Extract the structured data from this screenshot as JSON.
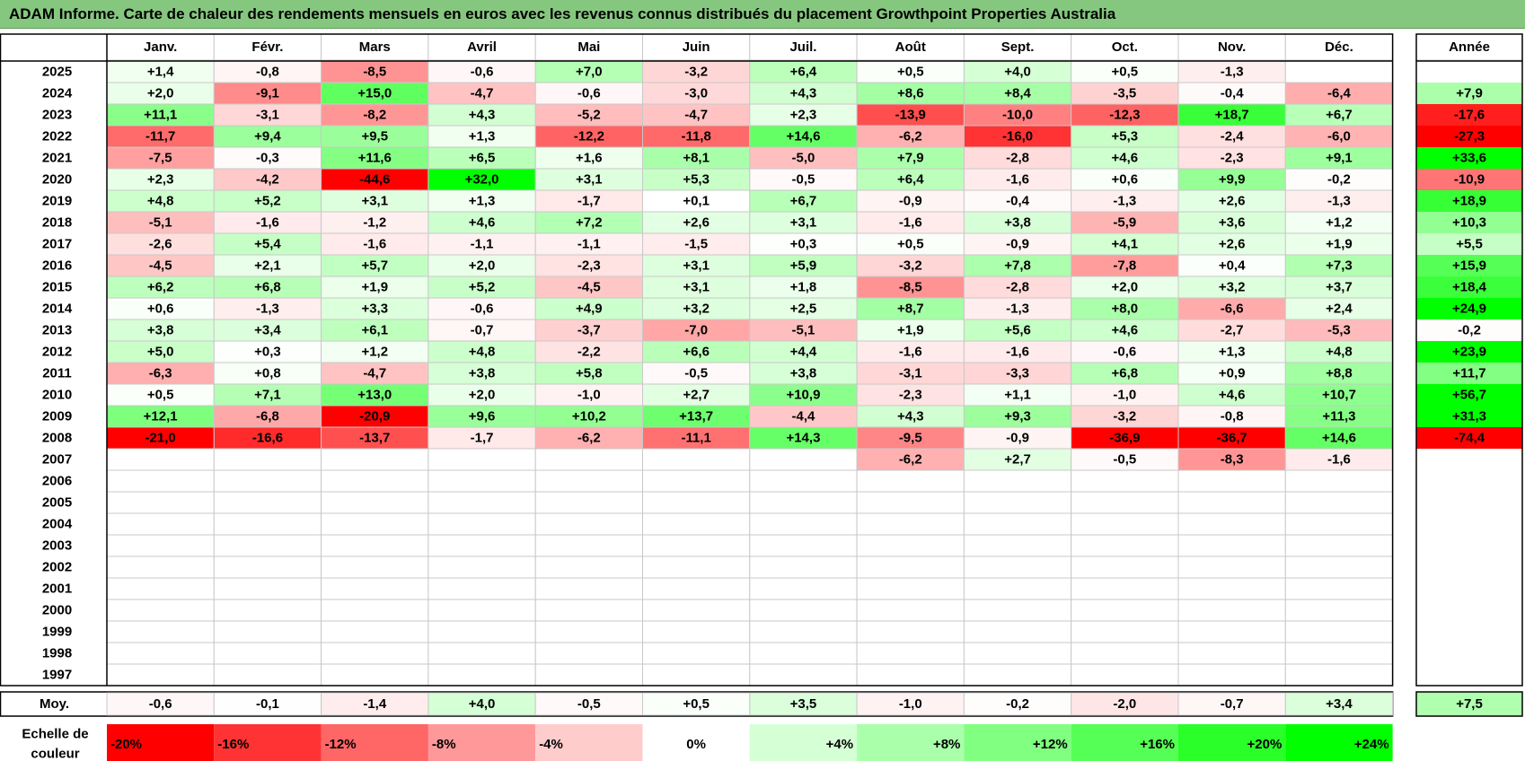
{
  "title": "ADAM Informe. Carte de chaleur des rendements mensuels en euros avec les revenus connus distribués du placement Growthpoint Properties Australia",
  "chart_data": {
    "type": "heatmap",
    "title": "ADAM Informe. Carte de chaleur des rendements mensuels en euros avec les revenus connus distribués du placement Growthpoint Properties Australia",
    "months": [
      "Janv.",
      "Févr.",
      "Mars",
      "Avril",
      "Mai",
      "Juin",
      "Juil.",
      "Août",
      "Sept.",
      "Oct.",
      "Nov.",
      "Déc."
    ],
    "year_header": "Année",
    "rows": [
      {
        "year": "2025",
        "values": [
          "+1,4",
          "-0,8",
          "-8,5",
          "-0,6",
          "+7,0",
          "-3,2",
          "+6,4",
          "+0,5",
          "+4,0",
          "+0,5",
          "-1,3",
          ""
        ],
        "annual": ""
      },
      {
        "year": "2024",
        "values": [
          "+2,0",
          "-9,1",
          "+15,0",
          "-4,7",
          "-0,6",
          "-3,0",
          "+4,3",
          "+8,6",
          "+8,4",
          "-3,5",
          "-0,4",
          "-6,4"
        ],
        "annual": "+7,9"
      },
      {
        "year": "2023",
        "values": [
          "+11,1",
          "-3,1",
          "-8,2",
          "+4,3",
          "-5,2",
          "-4,7",
          "+2,3",
          "-13,9",
          "-10,0",
          "-12,3",
          "+18,7",
          "+6,7"
        ],
        "annual": "-17,6"
      },
      {
        "year": "2022",
        "values": [
          "-11,7",
          "+9,4",
          "+9,5",
          "+1,3",
          "-12,2",
          "-11,8",
          "+14,6",
          "-6,2",
          "-16,0",
          "+5,3",
          "-2,4",
          "-6,0"
        ],
        "annual": "-27,3"
      },
      {
        "year": "2021",
        "values": [
          "-7,5",
          "-0,3",
          "+11,6",
          "+6,5",
          "+1,6",
          "+8,1",
          "-5,0",
          "+7,9",
          "-2,8",
          "+4,6",
          "-2,3",
          "+9,1"
        ],
        "annual": "+33,6"
      },
      {
        "year": "2020",
        "values": [
          "+2,3",
          "-4,2",
          "-44,6",
          "+32,0",
          "+3,1",
          "+5,3",
          "-0,5",
          "+6,4",
          "-1,6",
          "+0,6",
          "+9,9",
          "-0,2"
        ],
        "annual": "-10,9"
      },
      {
        "year": "2019",
        "values": [
          "+4,8",
          "+5,2",
          "+3,1",
          "+1,3",
          "-1,7",
          "+0,1",
          "+6,7",
          "-0,9",
          "-0,4",
          "-1,3",
          "+2,6",
          "-1,3"
        ],
        "annual": "+18,9"
      },
      {
        "year": "2018",
        "values": [
          "-5,1",
          "-1,6",
          "-1,2",
          "+4,6",
          "+7,2",
          "+2,6",
          "+3,1",
          "-1,6",
          "+3,8",
          "-5,9",
          "+3,6",
          "+1,2"
        ],
        "annual": "+10,3"
      },
      {
        "year": "2017",
        "values": [
          "-2,6",
          "+5,4",
          "-1,6",
          "-1,1",
          "-1,1",
          "-1,5",
          "+0,3",
          "+0,5",
          "-0,9",
          "+4,1",
          "+2,6",
          "+1,9"
        ],
        "annual": "+5,5"
      },
      {
        "year": "2016",
        "values": [
          "-4,5",
          "+2,1",
          "+5,7",
          "+2,0",
          "-2,3",
          "+3,1",
          "+5,9",
          "-3,2",
          "+7,8",
          "-7,8",
          "+0,4",
          "+7,3"
        ],
        "annual": "+15,9"
      },
      {
        "year": "2015",
        "values": [
          "+6,2",
          "+6,8",
          "+1,9",
          "+5,2",
          "-4,5",
          "+3,1",
          "+1,8",
          "-8,5",
          "-2,8",
          "+2,0",
          "+3,2",
          "+3,7"
        ],
        "annual": "+18,4"
      },
      {
        "year": "2014",
        "values": [
          "+0,6",
          "-1,3",
          "+3,3",
          "-0,6",
          "+4,9",
          "+3,2",
          "+2,5",
          "+8,7",
          "-1,3",
          "+8,0",
          "-6,6",
          "+2,4"
        ],
        "annual": "+24,9"
      },
      {
        "year": "2013",
        "values": [
          "+3,8",
          "+3,4",
          "+6,1",
          "-0,7",
          "-3,7",
          "-7,0",
          "-5,1",
          "+1,9",
          "+5,6",
          "+4,6",
          "-2,7",
          "-5,3"
        ],
        "annual": "-0,2"
      },
      {
        "year": "2012",
        "values": [
          "+5,0",
          "+0,3",
          "+1,2",
          "+4,8",
          "-2,2",
          "+6,6",
          "+4,4",
          "-1,6",
          "-1,6",
          "-0,6",
          "+1,3",
          "+4,8"
        ],
        "annual": "+23,9"
      },
      {
        "year": "2011",
        "values": [
          "-6,3",
          "+0,8",
          "-4,7",
          "+3,8",
          "+5,8",
          "-0,5",
          "+3,8",
          "-3,1",
          "-3,3",
          "+6,8",
          "+0,9",
          "+8,8"
        ],
        "annual": "+11,7"
      },
      {
        "year": "2010",
        "values": [
          "+0,5",
          "+7,1",
          "+13,0",
          "+2,0",
          "-1,0",
          "+2,7",
          "+10,9",
          "-2,3",
          "+1,1",
          "-1,0",
          "+4,6",
          "+10,7"
        ],
        "annual": "+56,7"
      },
      {
        "year": "2009",
        "values": [
          "+12,1",
          "-6,8",
          "-20,9",
          "+9,6",
          "+10,2",
          "+13,7",
          "-4,4",
          "+4,3",
          "+9,3",
          "-3,2",
          "-0,8",
          "+11,3"
        ],
        "annual": "+31,3"
      },
      {
        "year": "2008",
        "values": [
          "-21,0",
          "-16,6",
          "-13,7",
          "-1,7",
          "-6,2",
          "-11,1",
          "+14,3",
          "-9,5",
          "-0,9",
          "-36,9",
          "-36,7",
          "+14,6"
        ],
        "annual": "-74,4"
      },
      {
        "year": "2007",
        "values": [
          "",
          "",
          "",
          "",
          "",
          "",
          "",
          "-6,2",
          "+2,7",
          "-0,5",
          "-8,3",
          "-1,6"
        ],
        "annual": ""
      },
      {
        "year": "2006",
        "values": [
          "",
          "",
          "",
          "",
          "",
          "",
          "",
          "",
          "",
          "",
          "",
          ""
        ],
        "annual": ""
      },
      {
        "year": "2005",
        "values": [
          "",
          "",
          "",
          "",
          "",
          "",
          "",
          "",
          "",
          "",
          "",
          ""
        ],
        "annual": ""
      },
      {
        "year": "2004",
        "values": [
          "",
          "",
          "",
          "",
          "",
          "",
          "",
          "",
          "",
          "",
          "",
          ""
        ],
        "annual": ""
      },
      {
        "year": "2003",
        "values": [
          "",
          "",
          "",
          "",
          "",
          "",
          "",
          "",
          "",
          "",
          "",
          ""
        ],
        "annual": ""
      },
      {
        "year": "2002",
        "values": [
          "",
          "",
          "",
          "",
          "",
          "",
          "",
          "",
          "",
          "",
          "",
          ""
        ],
        "annual": ""
      },
      {
        "year": "2001",
        "values": [
          "",
          "",
          "",
          "",
          "",
          "",
          "",
          "",
          "",
          "",
          "",
          ""
        ],
        "annual": ""
      },
      {
        "year": "2000",
        "values": [
          "",
          "",
          "",
          "",
          "",
          "",
          "",
          "",
          "",
          "",
          "",
          ""
        ],
        "annual": ""
      },
      {
        "year": "1999",
        "values": [
          "",
          "",
          "",
          "",
          "",
          "",
          "",
          "",
          "",
          "",
          "",
          ""
        ],
        "annual": ""
      },
      {
        "year": "1998",
        "values": [
          "",
          "",
          "",
          "",
          "",
          "",
          "",
          "",
          "",
          "",
          "",
          ""
        ],
        "annual": ""
      },
      {
        "year": "1997",
        "values": [
          "",
          "",
          "",
          "",
          "",
          "",
          "",
          "",
          "",
          "",
          "",
          ""
        ],
        "annual": ""
      }
    ],
    "average": {
      "label": "Moy.",
      "values": [
        "-0,6",
        "-0,1",
        "-1,4",
        "+4,0",
        "-0,5",
        "+0,5",
        "+3,5",
        "-1,0",
        "-0,2",
        "-2,0",
        "-0,7",
        "+3,4"
      ],
      "annual": "+7,5"
    },
    "color_scale": {
      "label_line1": "Echelle de",
      "label_line2": "couleur",
      "steps": [
        {
          "label": "-20%",
          "value": -20
        },
        {
          "label": "-16%",
          "value": -16
        },
        {
          "label": "-12%",
          "value": -12
        },
        {
          "label": "-8%",
          "value": -8
        },
        {
          "label": "-4%",
          "value": -4
        },
        {
          "label": "0%",
          "value": 0
        },
        {
          "label": "+4%",
          "value": 4
        },
        {
          "label": "+8%",
          "value": 8
        },
        {
          "label": "+12%",
          "value": 12
        },
        {
          "label": "+16%",
          "value": 16
        },
        {
          "label": "+20%",
          "value": 20
        },
        {
          "label": "+24%",
          "value": 24
        }
      ]
    },
    "colors": {
      "negative_max": "#ff0000",
      "neutral": "#ffffff",
      "positive_max": "#00ff00",
      "title_bar": "#86c77f"
    }
  }
}
